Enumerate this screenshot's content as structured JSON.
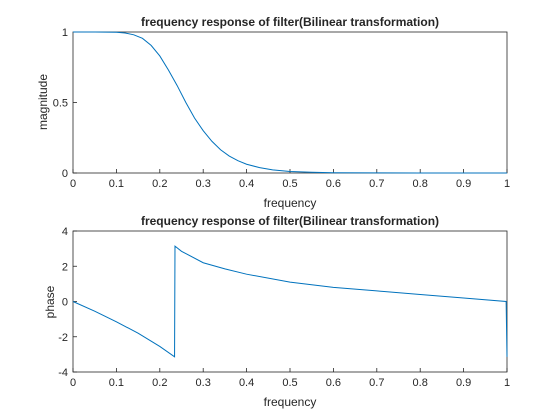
{
  "figure": {
    "background": "#ffffff",
    "line_color": "#0072bd",
    "axis_color": "#262626"
  },
  "chart_data": [
    {
      "type": "line",
      "title": "frequency response of filter(Bilinear transformation)",
      "xlabel": "frequency",
      "ylabel": "magnitude",
      "xlim": [
        0,
        1
      ],
      "ylim": [
        0,
        1
      ],
      "xticks": [
        0,
        0.1,
        0.2,
        0.3,
        0.4,
        0.5,
        0.6,
        0.7,
        0.8,
        0.9,
        1
      ],
      "xtick_labels": [
        "0",
        "0.1",
        "0.2",
        "0.3",
        "0.4",
        "0.5",
        "0.6",
        "0.7",
        "0.8",
        "0.9",
        "1"
      ],
      "yticks": [
        0,
        0.5,
        1
      ],
      "ytick_labels": [
        "0",
        "0.5",
        "1"
      ],
      "grid": false,
      "series": [
        {
          "x": [
            0,
            0.05,
            0.1,
            0.12,
            0.14,
            0.16,
            0.18,
            0.2,
            0.22,
            0.24,
            0.26,
            0.28,
            0.3,
            0.32,
            0.34,
            0.36,
            0.38,
            0.4,
            0.43,
            0.46,
            0.5,
            0.55,
            0.6,
            0.7,
            0.8,
            0.9,
            1
          ],
          "y": [
            1,
            1,
            0.998,
            0.993,
            0.98,
            0.955,
            0.905,
            0.83,
            0.73,
            0.62,
            0.5,
            0.39,
            0.3,
            0.225,
            0.165,
            0.12,
            0.087,
            0.062,
            0.038,
            0.022,
            0.011,
            0.005,
            0.002,
            0.0005,
            0.0001,
            0,
            0
          ]
        }
      ]
    },
    {
      "type": "line",
      "title": "frequency response of filter(Bilinear transformation)",
      "xlabel": "frequency",
      "ylabel": "phase",
      "xlim": [
        0,
        1
      ],
      "ylim": [
        -4,
        4
      ],
      "xticks": [
        0,
        0.1,
        0.2,
        0.3,
        0.4,
        0.5,
        0.6,
        0.7,
        0.8,
        0.9,
        1
      ],
      "xtick_labels": [
        "0",
        "0.1",
        "0.2",
        "0.3",
        "0.4",
        "0.5",
        "0.6",
        "0.7",
        "0.8",
        "0.9",
        "1"
      ],
      "yticks": [
        -4,
        -2,
        0,
        2,
        4
      ],
      "ytick_labels": [
        "-4",
        "-2",
        "0",
        "2",
        "4"
      ],
      "grid": false,
      "series": [
        {
          "x": [
            0,
            0.05,
            0.1,
            0.15,
            0.2,
            0.234,
            0.235,
            0.25,
            0.3,
            0.35,
            0.4,
            0.5,
            0.6,
            0.7,
            0.8,
            0.9,
            0.998,
            1.0
          ],
          "y": [
            0,
            -0.55,
            -1.15,
            -1.8,
            -2.55,
            -3.14,
            3.14,
            2.85,
            2.2,
            1.85,
            1.55,
            1.1,
            0.8,
            0.6,
            0.4,
            0.2,
            0,
            -3.14
          ]
        }
      ]
    }
  ]
}
